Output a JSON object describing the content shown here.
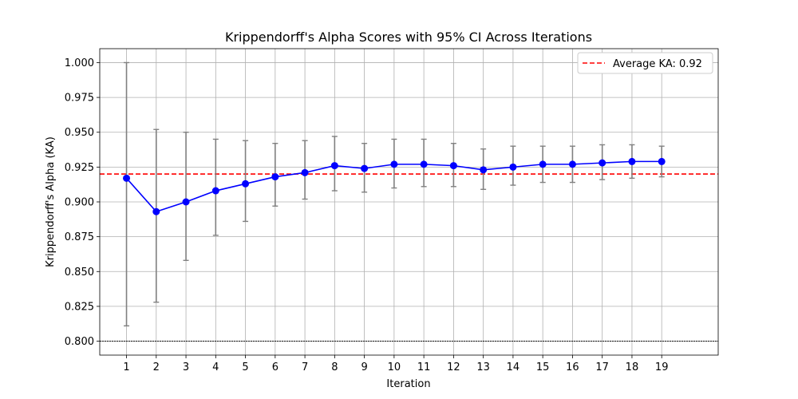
{
  "chart_data": {
    "type": "line",
    "title": "Krippendorff's Alpha Scores with 95% CI Across Iterations",
    "xlabel": "Iteration",
    "ylabel": "Krippendorff's Alpha (KA)",
    "x": [
      1,
      2,
      3,
      4,
      5,
      6,
      7,
      8,
      9,
      10,
      11,
      12,
      13,
      14,
      15,
      16,
      17,
      18,
      19
    ],
    "xlim": [
      0.1,
      20.9
    ],
    "ylim": [
      0.79,
      1.01
    ],
    "yticks": [
      "0.800",
      "0.825",
      "0.850",
      "0.875",
      "0.900",
      "0.925",
      "0.950",
      "0.975",
      "1.000"
    ],
    "grid": true,
    "legend_placement": "top-right",
    "series": [
      {
        "values": [
          0.917,
          0.893,
          0.9,
          0.908,
          0.913,
          0.918,
          0.921,
          0.926,
          0.924,
          0.927,
          0.927,
          0.926,
          0.923,
          0.925,
          0.927,
          0.927,
          0.928,
          0.929,
          0.929
        ],
        "ci_low": [
          0.811,
          0.828,
          0.858,
          0.876,
          0.886,
          0.897,
          0.902,
          0.908,
          0.907,
          0.91,
          0.911,
          0.911,
          0.909,
          0.912,
          0.914,
          0.914,
          0.916,
          0.917,
          0.918
        ],
        "ci_high": [
          1.0,
          0.952,
          0.95,
          0.945,
          0.944,
          0.942,
          0.944,
          0.947,
          0.942,
          0.945,
          0.945,
          0.942,
          0.938,
          0.94,
          0.94,
          0.94,
          0.941,
          0.941,
          0.94
        ],
        "color": "#0000ff",
        "errorbar_color": "#808080"
      }
    ],
    "reference_lines": [
      {
        "name": "Average KA: 0.92",
        "y": 0.92,
        "color": "#ff0000",
        "style": "dashed"
      },
      {
        "y": 0.8,
        "color": "#000000",
        "style": "dotted"
      }
    ]
  }
}
